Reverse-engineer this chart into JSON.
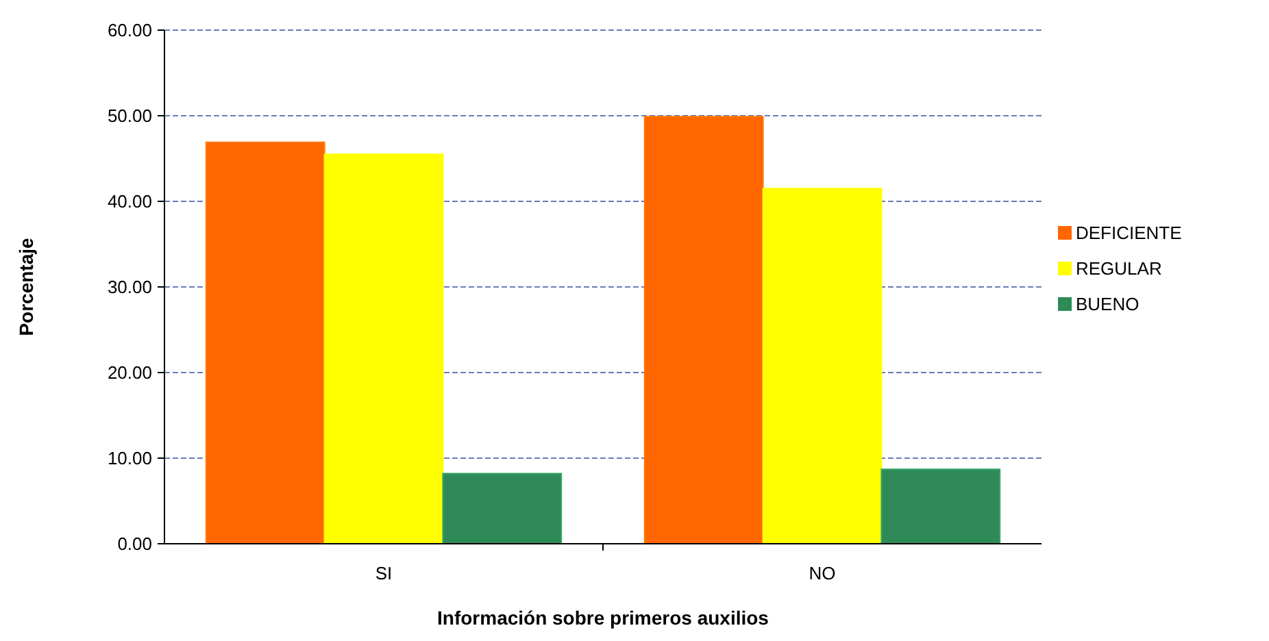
{
  "chart_data": {
    "type": "bar",
    "xlabel": "Información sobre primeros auxilios",
    "ylabel": "Porcentaje",
    "categories": [
      "SI",
      "NO"
    ],
    "series": [
      {
        "name": "DEFICIENTE",
        "color": "#ff6600",
        "values": [
          46.9,
          49.9
        ]
      },
      {
        "name": "REGULAR",
        "color": "#ffff00",
        "values": [
          45.5,
          41.5
        ]
      },
      {
        "name": "BUENO",
        "color": "#2e8b57",
        "values": [
          8.2,
          8.7
        ]
      }
    ],
    "ylim": [
      0,
      60
    ],
    "yticks": [
      {
        "value": 0,
        "label": "0.00"
      },
      {
        "value": 10,
        "label": "10.00"
      },
      {
        "value": 20,
        "label": "20.00"
      },
      {
        "value": 30,
        "label": "30.00"
      },
      {
        "value": 40,
        "label": "40.00"
      },
      {
        "value": 50,
        "label": "50.00"
      },
      {
        "value": 60,
        "label": "60.00"
      }
    ],
    "grid": "y",
    "legend": "right"
  }
}
